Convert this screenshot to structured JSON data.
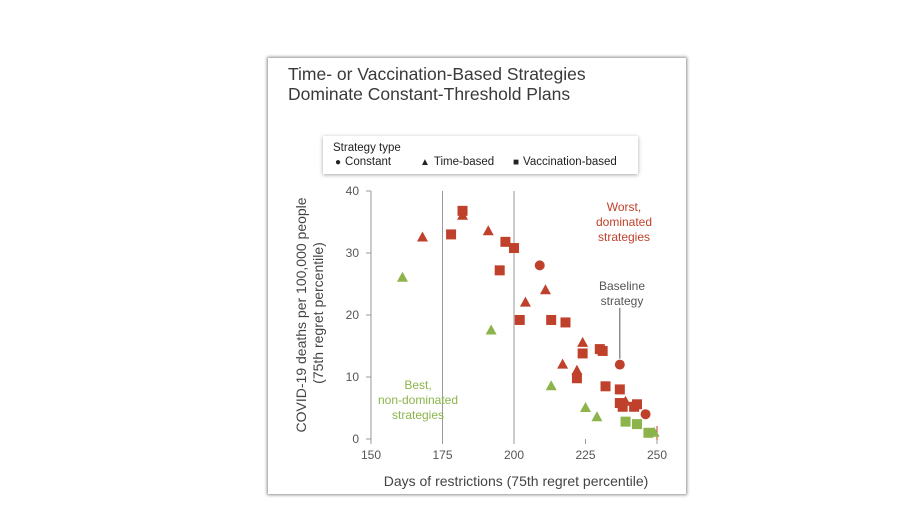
{
  "title": "Time- or Vaccination-Based Strategies\nDominate Constant-Threshold Plans",
  "legend": {
    "title": "Strategy type",
    "items": [
      {
        "label": "Constant",
        "symbol": "circle"
      },
      {
        "label": "Time-based",
        "symbol": "triangle"
      },
      {
        "label": "Vaccination-based",
        "symbol": "square"
      }
    ]
  },
  "annotations": {
    "worst": "Worst,\ndominated\nstrategies",
    "baseline": "Baseline\nstrategy",
    "best": "Best,\nnon-dominated\nstrategies"
  },
  "colors": {
    "dominated": "#c0412b",
    "nondominated": "#8cb44b",
    "grid": "#9a9a9a"
  },
  "chart_data": {
    "type": "scatter",
    "title": "Time- or Vaccination-Based Strategies Dominate Constant-Threshold Plans",
    "xlabel": "Days of restrictions (75th regret percentile)",
    "ylabel": "COVID-19 deaths per 100,000 people (75th regret percentile)",
    "xlim": [
      150,
      250
    ],
    "ylim": [
      0,
      40
    ],
    "xticks": [
      150,
      175,
      200,
      225,
      250
    ],
    "yticks": [
      0,
      10,
      20,
      30,
      40
    ],
    "grid": "vertical lines at 175 and 200",
    "legend_position": "top",
    "series": [
      {
        "name": "Constant",
        "marker": "circle",
        "points": [
          {
            "x": 209,
            "y": 28.0,
            "group": "dominated"
          },
          {
            "x": 237,
            "y": 12.0,
            "group": "dominated"
          },
          {
            "x": 246,
            "y": 4.0,
            "group": "dominated"
          }
        ]
      },
      {
        "name": "Time-based",
        "marker": "triangle",
        "points": [
          {
            "x": 168,
            "y": 32.5,
            "group": "dominated"
          },
          {
            "x": 182,
            "y": 36.0,
            "group": "dominated"
          },
          {
            "x": 191,
            "y": 33.5,
            "group": "dominated"
          },
          {
            "x": 204,
            "y": 22.0,
            "group": "dominated"
          },
          {
            "x": 211,
            "y": 24.0,
            "group": "dominated"
          },
          {
            "x": 217,
            "y": 12.0,
            "group": "dominated"
          },
          {
            "x": 222,
            "y": 11.0,
            "group": "dominated"
          },
          {
            "x": 224,
            "y": 15.5,
            "group": "dominated"
          },
          {
            "x": 239,
            "y": 6.0,
            "group": "dominated"
          },
          {
            "x": 161,
            "y": 26.0,
            "group": "nondominated"
          },
          {
            "x": 192,
            "y": 17.5,
            "group": "nondominated"
          },
          {
            "x": 213,
            "y": 8.5,
            "group": "nondominated"
          },
          {
            "x": 225,
            "y": 5.0,
            "group": "nondominated"
          },
          {
            "x": 229,
            "y": 3.5,
            "group": "nondominated"
          },
          {
            "x": 249,
            "y": 1.0,
            "group": "nondominated"
          }
        ]
      },
      {
        "name": "Vaccination-based",
        "marker": "square",
        "points": [
          {
            "x": 178,
            "y": 33.0,
            "group": "dominated"
          },
          {
            "x": 182,
            "y": 36.8,
            "group": "dominated"
          },
          {
            "x": 195,
            "y": 27.2,
            "group": "dominated"
          },
          {
            "x": 197,
            "y": 31.8,
            "group": "dominated"
          },
          {
            "x": 200,
            "y": 30.8,
            "group": "dominated"
          },
          {
            "x": 202,
            "y": 19.2,
            "group": "dominated"
          },
          {
            "x": 213,
            "y": 19.2,
            "group": "dominated"
          },
          {
            "x": 218,
            "y": 18.8,
            "group": "dominated"
          },
          {
            "x": 222,
            "y": 9.8,
            "group": "dominated"
          },
          {
            "x": 224,
            "y": 13.8,
            "group": "dominated"
          },
          {
            "x": 230,
            "y": 14.5,
            "group": "dominated"
          },
          {
            "x": 231,
            "y": 14.2,
            "group": "dominated"
          },
          {
            "x": 232,
            "y": 8.5,
            "group": "dominated"
          },
          {
            "x": 237,
            "y": 8.0,
            "group": "dominated"
          },
          {
            "x": 237,
            "y": 5.8,
            "group": "dominated"
          },
          {
            "x": 238,
            "y": 5.2,
            "group": "dominated"
          },
          {
            "x": 242,
            "y": 5.2,
            "group": "dominated"
          },
          {
            "x": 243,
            "y": 5.6,
            "group": "dominated"
          },
          {
            "x": 239,
            "y": 2.8,
            "group": "nondominated"
          },
          {
            "x": 243,
            "y": 2.4,
            "group": "nondominated"
          },
          {
            "x": 247,
            "y": 1.0,
            "group": "nondominated"
          }
        ]
      }
    ]
  }
}
